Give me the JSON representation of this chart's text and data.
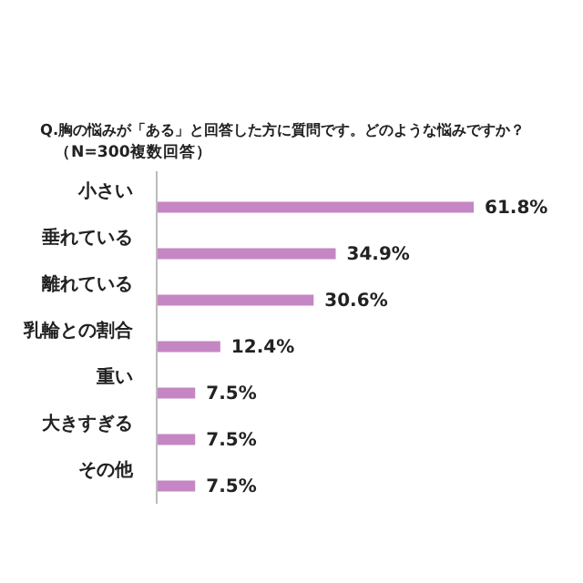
{
  "chart_data": {
    "type": "bar",
    "orientation": "horizontal",
    "title": "Q.胸の悩みが「ある」と回答した方に質問です。どのような悩みですか？",
    "subtitle": "（N=300複数回答）",
    "categories": [
      "小さい",
      "垂れている",
      "離れている",
      "乳輪との割合",
      "重い",
      "大きすぎる",
      "その他"
    ],
    "values": [
      61.8,
      34.9,
      30.6,
      12.4,
      7.5,
      7.5,
      7.5
    ],
    "value_labels": [
      "61.8%",
      "34.9%",
      "30.6%",
      "12.4%",
      "7.5%",
      "7.5%",
      "7.5%"
    ],
    "color": "#c586c4"
  }
}
